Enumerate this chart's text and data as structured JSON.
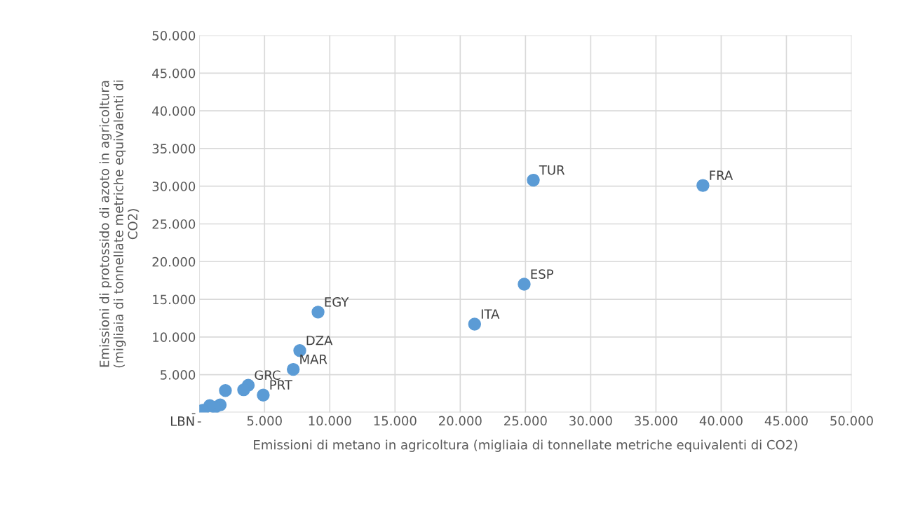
{
  "chart_data": {
    "type": "scatter",
    "xlabel": "Emissioni di metano in agricoltura (migliaia di tonnellate metriche equivalenti di CO2)",
    "ylabel": "Emissioni di protossido di azoto in agricoltura\n(migliaia di tonnellate metriche equivalenti di\nCO2)",
    "x": [
      25600,
      38600,
      24900,
      21100,
      9100,
      7700,
      7200,
      4900,
      3750,
      3400,
      2000,
      1600,
      1200,
      800,
      270
    ],
    "series": [
      {
        "color": "#5b9bd5",
        "values": [
          30800,
          30100,
          17000,
          11700,
          13300,
          8200,
          5700,
          2300,
          3600,
          3000,
          2900,
          1000,
          700,
          900,
          280
        ]
      }
    ],
    "xlim": [
      0,
      50000
    ],
    "ylim": [
      0,
      50000
    ],
    "xticks": [
      {
        "value": 0,
        "label": "-"
      },
      {
        "value": 5000,
        "label": "5.000"
      },
      {
        "value": 10000,
        "label": "10.000"
      },
      {
        "value": 15000,
        "label": "15.000"
      },
      {
        "value": 20000,
        "label": "20.000"
      },
      {
        "value": 25000,
        "label": "25.000"
      },
      {
        "value": 30000,
        "label": "30.000"
      },
      {
        "value": 35000,
        "label": "35.000"
      },
      {
        "value": 40000,
        "label": "40.000"
      },
      {
        "value": 45000,
        "label": "45.000"
      },
      {
        "value": 50000,
        "label": "50.000"
      }
    ],
    "yticks": [
      {
        "value": 0,
        "label": "-"
      },
      {
        "value": 5000,
        "label": "5.000"
      },
      {
        "value": 10000,
        "label": "10.000"
      },
      {
        "value": 15000,
        "label": "15.000"
      },
      {
        "value": 20000,
        "label": "20.000"
      },
      {
        "value": 25000,
        "label": "25.000"
      },
      {
        "value": 30000,
        "label": "30.000"
      },
      {
        "value": 35000,
        "label": "35.000"
      },
      {
        "value": 40000,
        "label": "40.000"
      },
      {
        "value": 45000,
        "label": "45.000"
      },
      {
        "value": 50000,
        "label": "50.000"
      }
    ],
    "grid": true,
    "marker": "circle",
    "annotations": [
      {
        "text": "TUR",
        "x": 25600,
        "y": 30800
      },
      {
        "text": "FRA",
        "x": 38600,
        "y": 30100
      },
      {
        "text": "ESP",
        "x": 24900,
        "y": 17000
      },
      {
        "text": "ITA",
        "x": 21100,
        "y": 11700
      },
      {
        "text": "EGY",
        "x": 9100,
        "y": 13300
      },
      {
        "text": "DZA",
        "x": 7700,
        "y": 8200
      },
      {
        "text": "MAR",
        "x": 7200,
        "y": 5700
      },
      {
        "text": "PRT",
        "x": 4900,
        "y": 2300
      },
      {
        "text": "GRC",
        "x": 3750,
        "y": 3600
      },
      {
        "text": "LBN",
        "x": 270,
        "y": 280
      }
    ]
  }
}
